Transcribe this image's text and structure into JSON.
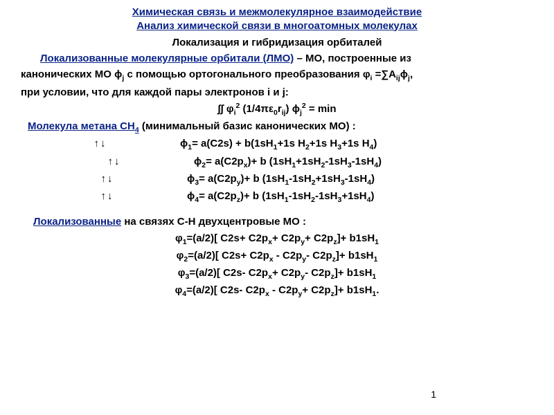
{
  "title": {
    "line1": "Химическая связь и межмолекулярное взаимодействие",
    "line2": "Анализ химической связи в многоатомных молекулах",
    "color": "#0a2388"
  },
  "subheading": "Локализация и гибридизация орбиталей",
  "intro": {
    "lmo_term": "Локализованные молекулярные орбитали (ЛМО)",
    "after_lmo": " – МО, построенные из",
    "line2_a": "канонических МО ϕ",
    "line2_b": " с помощью ортогонального преобразования φ",
    "line2_c": " =∑A",
    "line2_d": "ϕ",
    "line2_e": ",",
    "line3": "при условии, что для каждой пары электронов i и j:"
  },
  "integral": {
    "pre": "∫∫ φ",
    "mid1": " (1/4πε",
    "mid2": "r",
    "mid3": ") ϕ",
    "post": " = min"
  },
  "methane": {
    "label_a": "Молекула метана CH",
    "label_b": "  (минимальный базис канонических МО) :",
    "rows": [
      {
        "arrows": "↑↓",
        "phi": "ϕ",
        "n": "1",
        "eq": "= a(C2s) + b(1sH",
        "tail": "+1s H",
        "t2": "+1s H",
        "t3": "+1s H",
        "end": ")"
      },
      {
        "arrows": "↑↓",
        "phi": "ϕ",
        "n": "2",
        "eq": "= a(C2p",
        "ax": "x",
        "mid": ")+ b (1sH",
        "s": [
          "1",
          "2",
          "3",
          "4"
        ],
        "signs": [
          "+",
          "-",
          "-"
        ],
        "end": ")"
      },
      {
        "arrows": "↑↓",
        "phi": "ϕ",
        "n": "3",
        "eq": "= a(C2p",
        "ax": "y",
        "mid": ")+ b (1sH",
        "s": [
          "1",
          "2",
          "3",
          "4"
        ],
        "signs": [
          "-",
          "+",
          "-"
        ],
        "end": ")"
      },
      {
        "arrows": "↑↓",
        "phi": "ϕ",
        "n": "4",
        "eq": "= a(C2p",
        "ax": "z",
        "mid": ")+ b (1sH",
        "s": [
          "1",
          "2",
          "3",
          "4"
        ],
        "signs": [
          "-",
          "-",
          "+"
        ],
        "end": ")"
      }
    ]
  },
  "localized": {
    "label_a": "Локализованные",
    "label_b": " на связях C-H двухцентровые МО :",
    "rows": [
      {
        "n": "1",
        "signs": [
          "+",
          "+",
          "+"
        ],
        "end": ""
      },
      {
        "n": "2",
        "signs": [
          "+",
          "-",
          "-"
        ],
        "end": ""
      },
      {
        "n": "3",
        "signs": [
          "-",
          "+",
          "-"
        ],
        "end": ""
      },
      {
        "n": "4",
        "signs": [
          "-",
          "-",
          "+"
        ],
        "end": "."
      }
    ],
    "template": {
      "phi": "φ",
      "a": "=(a/2)[ C2s",
      "px": " C2p",
      "x": "x",
      "y": "y",
      "z": "z",
      "close": "]+ b1sH",
      "h": "1"
    }
  },
  "page": "1"
}
